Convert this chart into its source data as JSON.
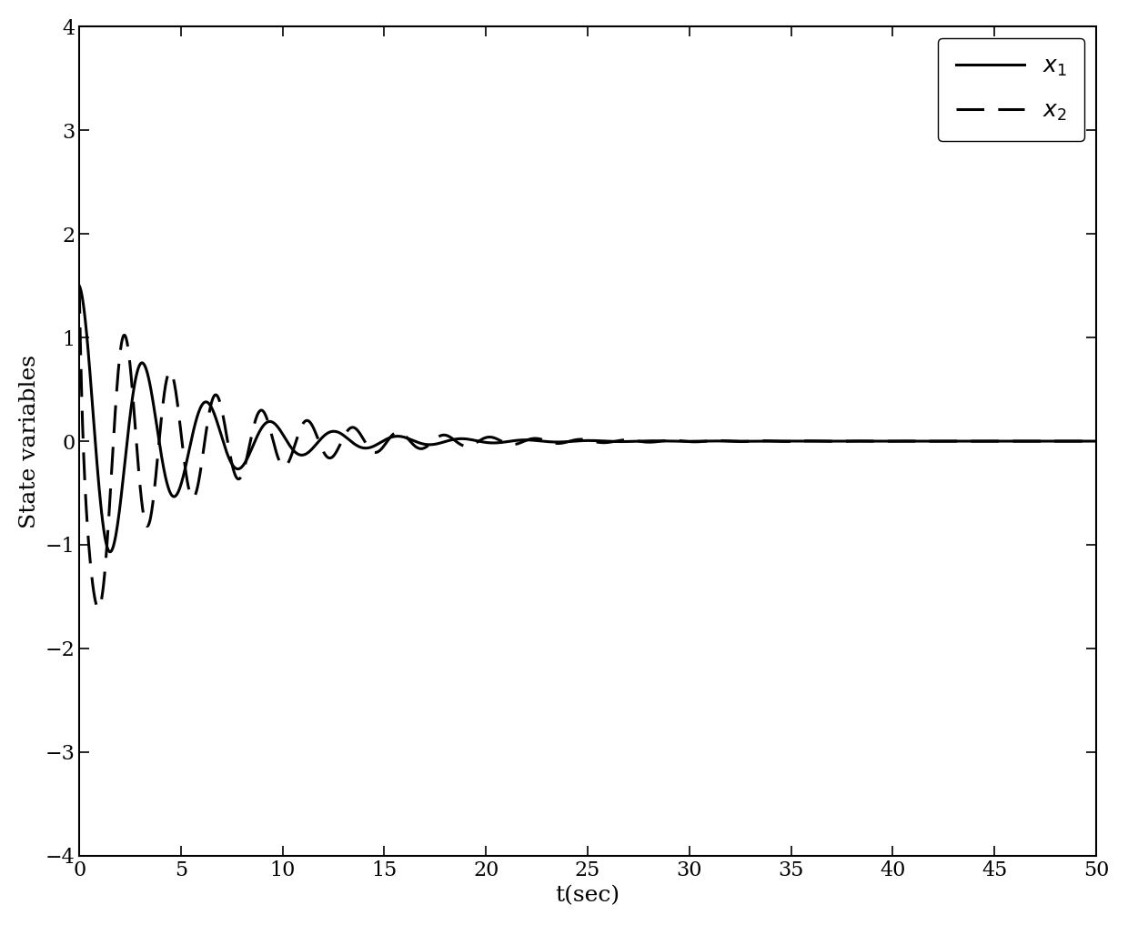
{
  "title": "",
  "xlabel": "t(sec)",
  "ylabel": "State variables",
  "xlim": [
    0,
    50
  ],
  "ylim": [
    -4,
    4
  ],
  "xticks": [
    0,
    5,
    10,
    15,
    20,
    25,
    30,
    35,
    40,
    45,
    50
  ],
  "yticks": [
    -4,
    -3,
    -2,
    -1,
    0,
    1,
    2,
    3,
    4
  ],
  "legend_x1": "$x_1$",
  "legend_x2": "$x_2$",
  "line_color": "black",
  "linewidth_x1": 2.2,
  "linewidth_x2": 2.2,
  "background_color": "white",
  "legend_loc": "upper right",
  "xlabel_fontsize": 18,
  "ylabel_fontsize": 18,
  "tick_fontsize": 16,
  "legend_fontsize": 18,
  "dash_on": 10,
  "dash_off": 5
}
